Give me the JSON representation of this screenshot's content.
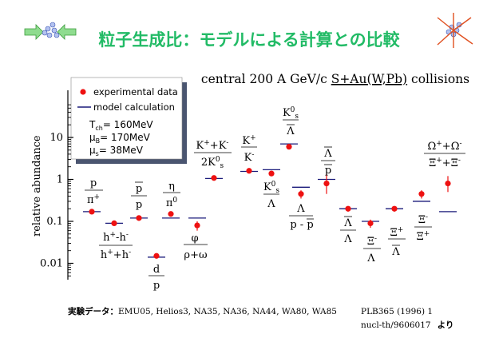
{
  "slide_title": "粒子生成比：モデルによる計算との比較",
  "legend": {
    "experimental": "experimental data",
    "model": "model calculation",
    "params": [
      {
        "sym": "T",
        "sub": "ch",
        "text": "= 160MeV"
      },
      {
        "sym": "μ",
        "sub": "B",
        "text": "= 170MeV"
      },
      {
        "sym": "μ",
        "sub": "s",
        "text": "=  38MeV"
      }
    ]
  },
  "footer": {
    "data_label": "実験データ：",
    "data_sources": "EMU05, Helios3, NA35, NA36, NA44, WA80, WA85",
    "ref1": "PLB365 (1996) 1",
    "ref2": "nucl-th/9606017",
    "ref2_suffix": "より"
  },
  "chart_data": {
    "type": "scatter",
    "title": "central 200 A GeV/c S+Au(W,Pb) collisions",
    "title_prefix": "central 200 A GeV/c ",
    "title_system": "S+Au(W,Pb)",
    "title_suffix": " collisions",
    "ylabel": "relative abundance",
    "yscale": "log",
    "ylim": [
      0.004,
      60
    ],
    "y_ticks": [
      {
        "v": 0.01,
        "label": "0.01"
      },
      {
        "v": 0.1,
        "label": "0.1"
      },
      {
        "v": 1,
        "label": "1"
      },
      {
        "v": 10,
        "label": "10"
      }
    ],
    "ratios": [
      {
        "label": "p / π⁺",
        "exp": 0.17,
        "model": 0.17,
        "err": [
          0.15,
          0.19
        ]
      },
      {
        "label": "(h⁺−h⁻) / (h⁺+h⁻)",
        "exp": 0.09,
        "model": 0.09,
        "err": [
          0.08,
          0.1
        ]
      },
      {
        "label": "p̄ / p",
        "exp": 0.12,
        "model": 0.12,
        "err": [
          0.11,
          0.13
        ]
      },
      {
        "label": "d / p",
        "exp": 0.015,
        "model": 0.014,
        "err": [
          0.013,
          0.017
        ]
      },
      {
        "label": "η / π⁰",
        "exp": 0.15,
        "model": 0.12,
        "err": [
          0.13,
          0.17
        ]
      },
      {
        "label": "φ / (ρ+ω)",
        "exp": 0.08,
        "model": 0.12,
        "err": [
          0.06,
          0.1
        ]
      },
      {
        "label": "(K⁺+K⁻) / 2K⁰s",
        "exp": 1.08,
        "model": 1.05,
        "err": [
          1.0,
          1.15
        ]
      },
      {
        "label": "K⁺ / K⁻",
        "exp": 1.6,
        "model": 1.55,
        "err": [
          1.5,
          1.7
        ]
      },
      {
        "label": "K⁰s / Λ",
        "exp": 1.38,
        "model": 1.7,
        "err": [
          1.2,
          1.55
        ]
      },
      {
        "label": "K⁰s / Λ̄",
        "exp": 6.0,
        "model": 7.0,
        "err": [
          5.3,
          6.8
        ]
      },
      {
        "label": "Λ / (p − p̄)",
        "exp": 0.45,
        "model": 0.65,
        "err": [
          0.35,
          0.55
        ]
      },
      {
        "label": "Λ̄ / p̄",
        "exp": 0.8,
        "model": 1.0,
        "err": [
          0.45,
          1.4
        ]
      },
      {
        "label": "Λ̄ / Λ",
        "exp": 0.2,
        "model": 0.2,
        "err": [
          0.17,
          0.23
        ]
      },
      {
        "label": "Ξ⁻ / Λ",
        "exp": 0.09,
        "model": 0.1,
        "err": [
          0.07,
          0.11
        ]
      },
      {
        "label": "Ξ⁺ / Λ̄",
        "exp": 0.2,
        "model": 0.2,
        "err": [
          0.17,
          0.23
        ]
      },
      {
        "label": "Ξ⁻ / Ξ⁺",
        "exp": 0.45,
        "model": 0.3,
        "err": [
          0.35,
          0.55
        ]
      },
      {
        "label": "(Ω⁺+Ω⁻) / (Ξ⁺+Ξ⁻)",
        "exp": 0.8,
        "model": 0.17,
        "err": [
          0.5,
          1.2
        ]
      }
    ]
  },
  "colors": {
    "title": "#22bb66",
    "marker": "#ee1111",
    "model": "#1a1a7a",
    "axis": "#000000",
    "legend_shadow": "#4a5570"
  }
}
